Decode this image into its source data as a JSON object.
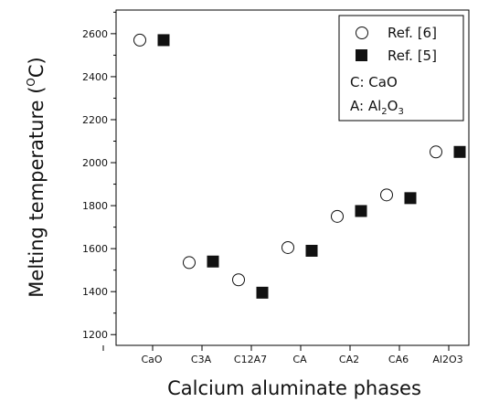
{
  "chart_data": {
    "type": "scatter",
    "categories": [
      "CaO",
      "C3A",
      "C12A7",
      "CA",
      "CA2",
      "CA6",
      "Al2O3"
    ],
    "series": [
      {
        "name": "Ref. [6]",
        "marker": "open-circle",
        "values": [
          2570,
          1535,
          1455,
          1605,
          1750,
          1850,
          2050
        ]
      },
      {
        "name": "Ref. [5]",
        "marker": "filled-square",
        "values": [
          2570,
          1540,
          1395,
          1590,
          1775,
          1835,
          2050
        ]
      }
    ],
    "xlabel": "Calcium aluminate phases",
    "ylabel": "Melting temperature (°C)",
    "ylabel_parts": {
      "main": "Melting temperature (",
      "sup": "O",
      "unit": "C)"
    },
    "ylim": [
      1150,
      2710
    ],
    "yticks": [
      1200,
      1400,
      1600,
      1800,
      2000,
      2200,
      2400,
      2600
    ],
    "grid": false,
    "legend_position": "top-right",
    "legend_notes": [
      {
        "prefix": "C: ",
        "base": "CaO",
        "parts": [
          {
            "text": "CaO",
            "sub": false
          }
        ]
      },
      {
        "prefix": "A: ",
        "base": "Al2O3",
        "parts": [
          {
            "text": "Al",
            "sub": false
          },
          {
            "text": "2",
            "sub": true
          },
          {
            "text": "O",
            "sub": false
          },
          {
            "text": "3",
            "sub": true
          }
        ]
      }
    ],
    "colors": {
      "marker": "#111111",
      "axis": "#000000",
      "background": "#ffffff"
    }
  }
}
